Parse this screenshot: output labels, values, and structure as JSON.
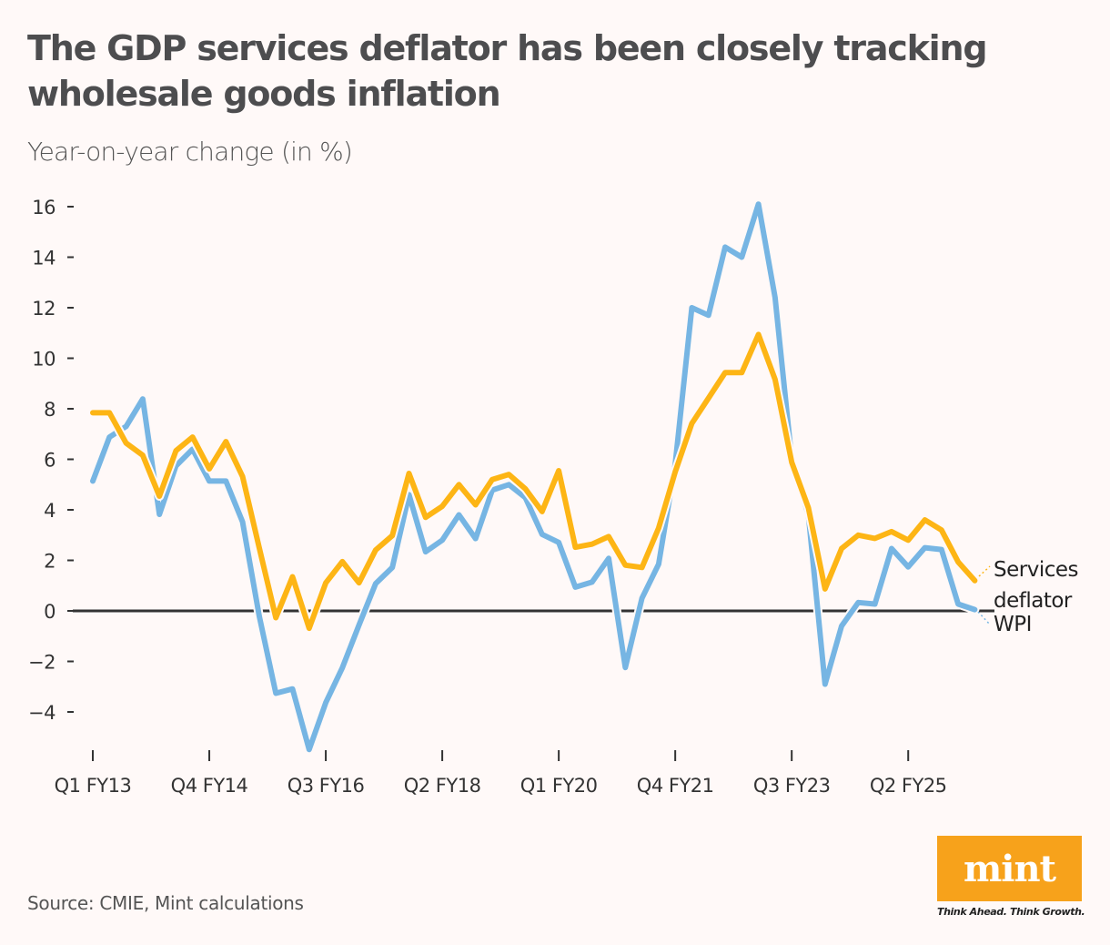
{
  "title": "The GDP services deflator has been closely tracking wholesale goods inflation",
  "source": "Source: CMIE, Mint calculations",
  "logo": {
    "text": "mint",
    "tagline": "Think Ahead. Think Growth."
  },
  "colors": {
    "wpi": "#76b5e3",
    "services": "#fdb515",
    "zero_line": "#333333",
    "background": "#fff9f8",
    "logo": "#f7a21b"
  },
  "chart_data": {
    "type": "line",
    "title": "The GDP services deflator has been closely tracking wholesale goods inflation",
    "ylabel": "Year-on-year change (in %)",
    "xlabel": "",
    "ylim": [
      -5.5,
      16.5
    ],
    "yticks": [
      16,
      14,
      12,
      10,
      8,
      6,
      4,
      2,
      0,
      -2,
      -4
    ],
    "ytick_labels": [
      "16",
      "14",
      "12",
      "10",
      "8",
      "6",
      "4",
      "2",
      "0",
      "−2",
      "−4"
    ],
    "x_start": "Q1 FY13",
    "x_end": "Q2 FY26",
    "xtick_labels": [
      "Q1 FY13",
      "Q4 FY14",
      "Q3 FY16",
      "Q2 FY18",
      "Q1 FY20",
      "Q4 FY21",
      "Q3 FY23",
      "Q2 FY25"
    ],
    "grid": false,
    "legend": "direct labels at right end of lines",
    "series": [
      {
        "name": "Services deflator",
        "color": "#fdb515",
        "values": [
          7.84,
          7.84,
          6.64,
          6.16,
          4.54,
          6.34,
          6.88,
          5.62,
          6.7,
          5.32,
          2.5,
          -0.27,
          1.35,
          -0.69,
          1.11,
          1.95,
          1.11,
          2.41,
          2.98,
          5.44,
          3.7,
          4.14,
          5.0,
          4.2,
          5.2,
          5.4,
          4.83,
          3.93,
          5.55,
          2.52,
          2.64,
          2.94,
          1.81,
          1.72,
          3.28,
          5.5,
          7.42,
          8.42,
          9.43,
          9.43,
          10.94,
          9.16,
          5.88,
          4.08,
          0.87,
          2.47,
          3.0,
          2.87,
          3.14,
          2.8,
          3.6,
          3.2,
          1.94,
          1.2
        ]
      },
      {
        "name": "WPI",
        "color": "#76b5e3",
        "values": [
          5.14,
          6.88,
          7.3,
          8.39,
          3.82,
          5.74,
          6.4,
          5.14,
          5.14,
          3.52,
          -0.2,
          -3.26,
          -3.09,
          -5.49,
          -3.63,
          -2.25,
          -0.56,
          1.08,
          1.72,
          4.6,
          2.34,
          2.8,
          3.8,
          2.86,
          4.78,
          5.0,
          4.48,
          3.03,
          2.71,
          0.94,
          1.14,
          2.08,
          -2.24,
          0.5,
          1.85,
          5.8,
          12.0,
          11.7,
          14.4,
          14.0,
          16.1,
          12.4,
          6.0,
          3.8,
          -2.9,
          -0.6,
          0.33,
          0.27,
          2.47,
          1.74,
          2.5,
          2.43,
          0.27,
          0.05
        ]
      }
    ],
    "series_labels": {
      "services_line1": "Services",
      "services_line2": "deflator",
      "wpi": "WPI"
    }
  }
}
